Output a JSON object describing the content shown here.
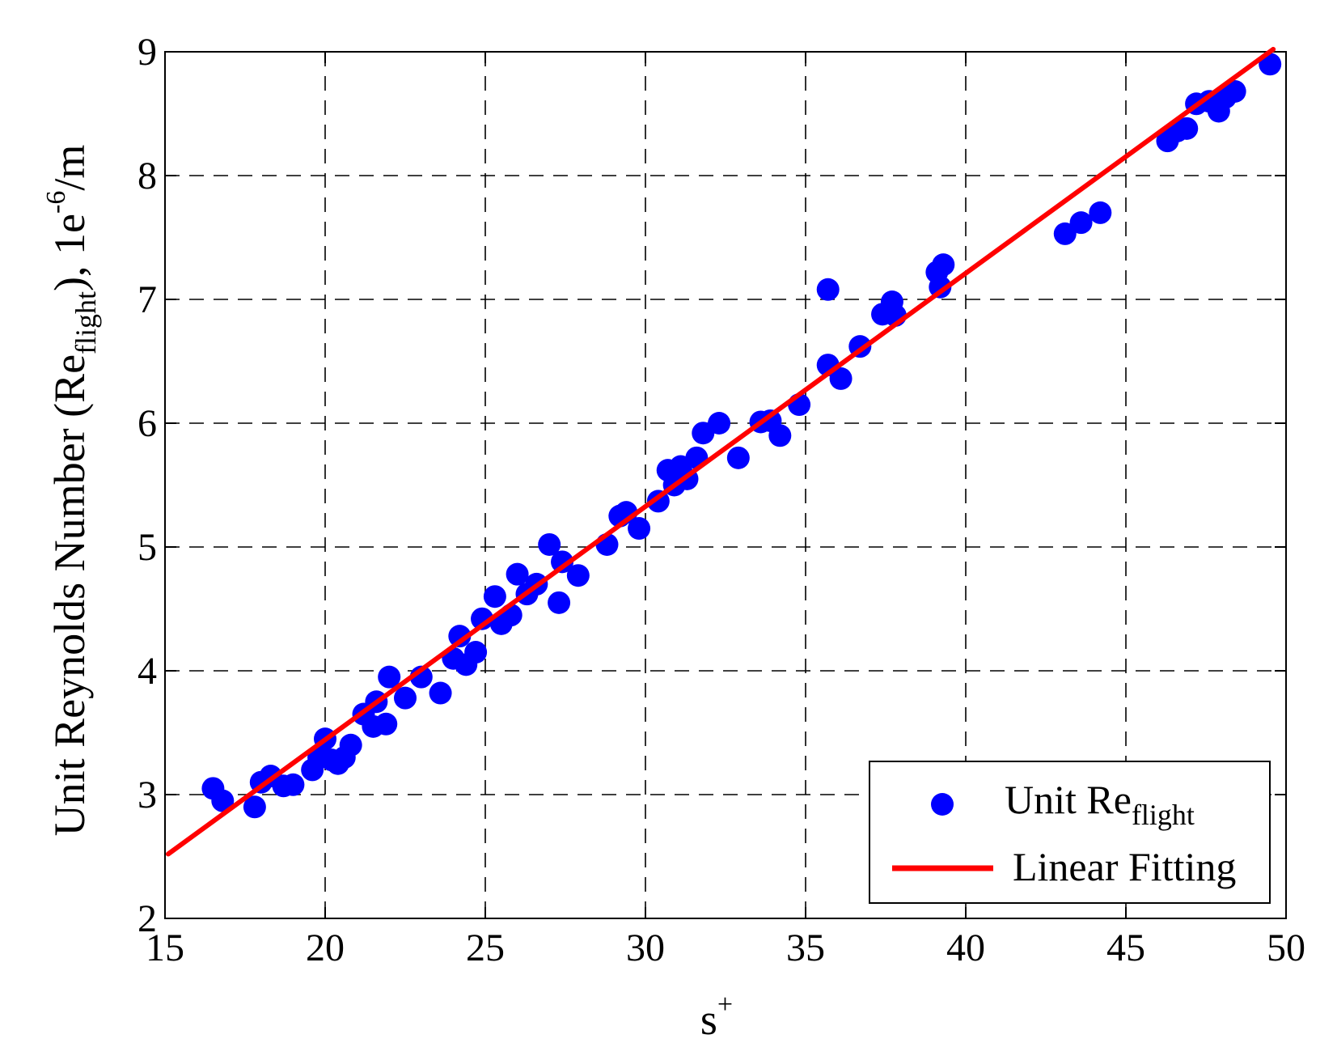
{
  "chart_data": {
    "type": "scatter",
    "xlabel": "s",
    "xlabel_sup": "+",
    "ylabel_main": "Unit Reynolds Number (Re",
    "ylabel_sub": "flight",
    "ylabel_mid": "), 1e",
    "ylabel_sup": "-6",
    "ylabel_end": "/m",
    "xlim": [
      15,
      50
    ],
    "ylim": [
      2,
      9
    ],
    "xticks": [
      15,
      20,
      25,
      30,
      35,
      40,
      45,
      50
    ],
    "yticks": [
      2,
      3,
      4,
      5,
      6,
      7,
      8,
      9
    ],
    "grid": true,
    "legend_position": "bottom-right",
    "colors": {
      "scatter": "#0000ff",
      "fit": "#ff0000"
    },
    "series": [
      {
        "name": "Unit Re",
        "name_sub": "flight",
        "kind": "scatter",
        "points": [
          [
            16.5,
            3.05
          ],
          [
            16.8,
            2.95
          ],
          [
            17.8,
            2.9
          ],
          [
            18.0,
            3.1
          ],
          [
            18.3,
            3.15
          ],
          [
            18.7,
            3.07
          ],
          [
            19.0,
            3.08
          ],
          [
            19.6,
            3.2
          ],
          [
            19.8,
            3.3
          ],
          [
            20.0,
            3.45
          ],
          [
            20.2,
            3.28
          ],
          [
            20.4,
            3.25
          ],
          [
            20.6,
            3.3
          ],
          [
            20.8,
            3.4
          ],
          [
            21.2,
            3.65
          ],
          [
            21.5,
            3.55
          ],
          [
            21.6,
            3.75
          ],
          [
            21.9,
            3.57
          ],
          [
            22.0,
            3.95
          ],
          [
            22.5,
            3.78
          ],
          [
            23.0,
            3.95
          ],
          [
            23.6,
            3.82
          ],
          [
            24.0,
            4.1
          ],
          [
            24.2,
            4.28
          ],
          [
            24.4,
            4.05
          ],
          [
            24.7,
            4.15
          ],
          [
            24.9,
            4.42
          ],
          [
            25.3,
            4.6
          ],
          [
            25.5,
            4.38
          ],
          [
            25.8,
            4.45
          ],
          [
            26.0,
            4.78
          ],
          [
            26.3,
            4.62
          ],
          [
            26.6,
            4.7
          ],
          [
            27.0,
            5.02
          ],
          [
            27.3,
            4.55
          ],
          [
            27.4,
            4.88
          ],
          [
            27.9,
            4.77
          ],
          [
            28.8,
            5.02
          ],
          [
            29.2,
            5.25
          ],
          [
            29.4,
            5.28
          ],
          [
            29.8,
            5.15
          ],
          [
            30.4,
            5.37
          ],
          [
            30.7,
            5.62
          ],
          [
            30.9,
            5.5
          ],
          [
            31.1,
            5.65
          ],
          [
            31.3,
            5.55
          ],
          [
            31.6,
            5.72
          ],
          [
            31.8,
            5.92
          ],
          [
            32.3,
            6.0
          ],
          [
            32.9,
            5.72
          ],
          [
            33.6,
            6.01
          ],
          [
            33.9,
            6.02
          ],
          [
            34.2,
            5.9
          ],
          [
            34.8,
            6.15
          ],
          [
            35.7,
            7.08
          ],
          [
            35.7,
            6.47
          ],
          [
            36.1,
            6.36
          ],
          [
            36.7,
            6.62
          ],
          [
            37.4,
            6.88
          ],
          [
            37.7,
            6.98
          ],
          [
            37.8,
            6.87
          ],
          [
            39.1,
            7.22
          ],
          [
            39.2,
            7.1
          ],
          [
            39.3,
            7.28
          ],
          [
            43.1,
            7.53
          ],
          [
            43.6,
            7.62
          ],
          [
            44.2,
            7.7
          ],
          [
            46.3,
            8.28
          ],
          [
            46.6,
            8.36
          ],
          [
            46.9,
            8.38
          ],
          [
            47.2,
            8.58
          ],
          [
            47.6,
            8.6
          ],
          [
            47.9,
            8.52
          ],
          [
            48.1,
            8.63
          ],
          [
            48.4,
            8.68
          ],
          [
            49.5,
            8.9
          ]
        ]
      },
      {
        "name": "Linear Fitting",
        "kind": "line",
        "points": [
          [
            15.1,
            2.52
          ],
          [
            49.6,
            9.02
          ]
        ]
      }
    ]
  }
}
